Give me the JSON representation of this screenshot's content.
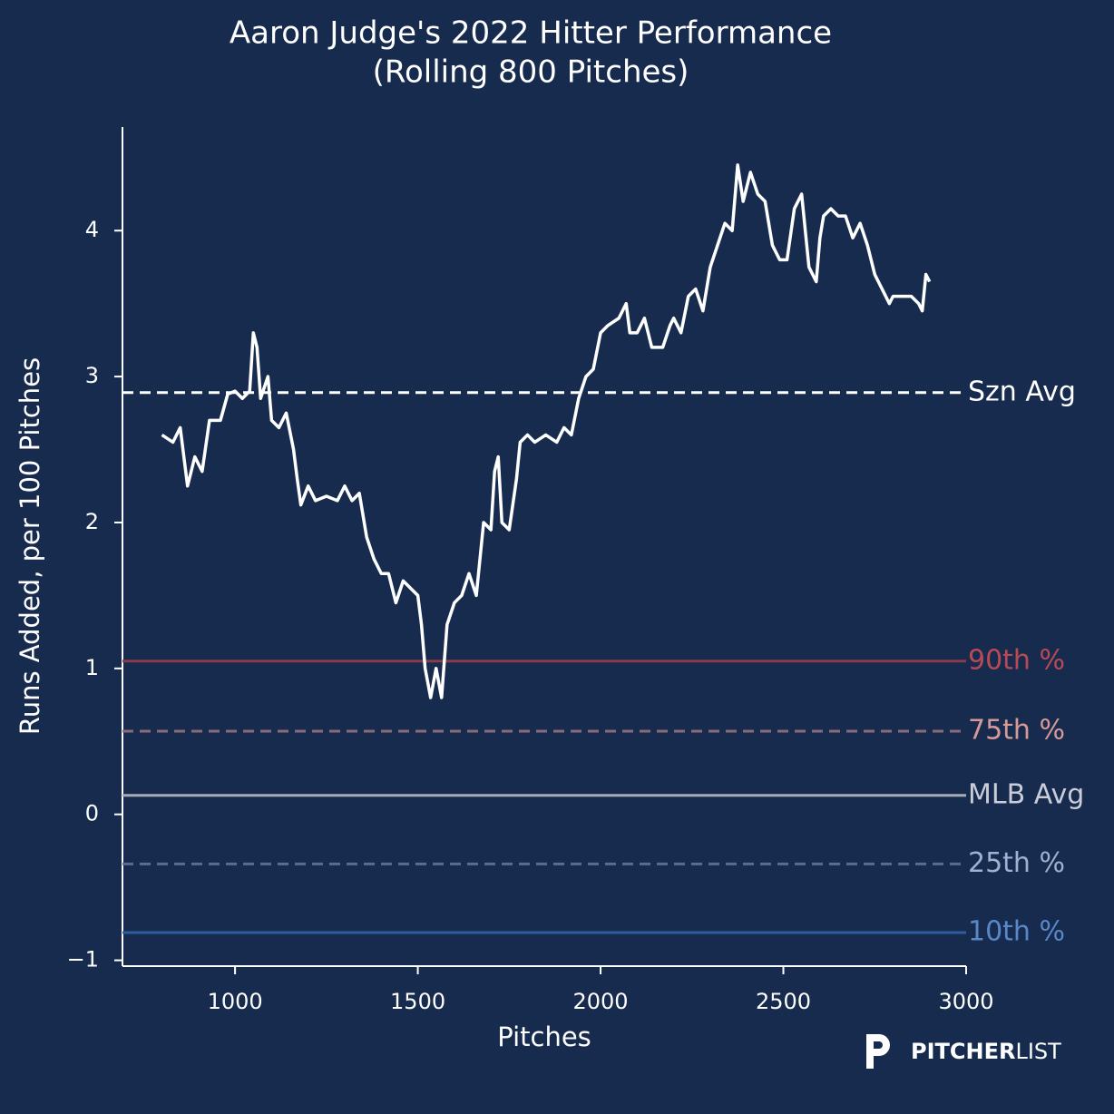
{
  "chart_data": {
    "type": "line",
    "title": "Aaron Judge's 2022 Hitter Performance",
    "subtitle": "(Rolling 800 Pitches)",
    "xlabel": "Pitches",
    "ylabel": "Runs Added, per 100 Pitches",
    "color": "#ffffff",
    "x": [
      800,
      830,
      850,
      870,
      890,
      910,
      930,
      960,
      980,
      1000,
      1020,
      1040,
      1050,
      1060,
      1070,
      1090,
      1100,
      1120,
      1140,
      1160,
      1170,
      1180,
      1200,
      1220,
      1250,
      1280,
      1300,
      1320,
      1340,
      1360,
      1380,
      1400,
      1420,
      1440,
      1460,
      1480,
      1500,
      1510,
      1520,
      1535,
      1550,
      1565,
      1580,
      1600,
      1620,
      1640,
      1660,
      1680,
      1700,
      1710,
      1720,
      1730,
      1750,
      1770,
      1780,
      1800,
      1820,
      1850,
      1880,
      1900,
      1920,
      1940,
      1960,
      1980,
      2000,
      2020,
      2050,
      2070,
      2080,
      2100,
      2120,
      2140,
      2170,
      2190,
      2200,
      2220,
      2240,
      2260,
      2280,
      2300,
      2320,
      2340,
      2360,
      2375,
      2390,
      2410,
      2430,
      2450,
      2470,
      2490,
      2510,
      2530,
      2550,
      2570,
      2590,
      2600,
      2610,
      2630,
      2650,
      2670,
      2690,
      2710,
      2730,
      2750,
      2770,
      2790,
      2800,
      2820,
      2850,
      2870,
      2880,
      2890,
      2900
    ],
    "values": [
      2.6,
      2.55,
      2.65,
      2.25,
      2.45,
      2.35,
      2.7,
      2.7,
      2.88,
      2.9,
      2.85,
      2.9,
      3.3,
      3.2,
      2.85,
      3.0,
      2.7,
      2.65,
      2.75,
      2.5,
      2.3,
      2.12,
      2.25,
      2.15,
      2.18,
      2.15,
      2.25,
      2.15,
      2.2,
      1.9,
      1.75,
      1.65,
      1.65,
      1.45,
      1.6,
      1.55,
      1.5,
      1.3,
      1.0,
      0.8,
      1.0,
      0.8,
      1.3,
      1.45,
      1.5,
      1.65,
      1.5,
      2.0,
      1.95,
      2.35,
      2.45,
      2.0,
      1.95,
      2.3,
      2.55,
      2.6,
      2.55,
      2.6,
      2.55,
      2.65,
      2.6,
      2.85,
      3.0,
      3.05,
      3.3,
      3.35,
      3.4,
      3.5,
      3.3,
      3.3,
      3.4,
      3.2,
      3.2,
      3.35,
      3.4,
      3.3,
      3.55,
      3.6,
      3.45,
      3.75,
      3.9,
      4.05,
      4.0,
      4.45,
      4.2,
      4.4,
      4.25,
      4.2,
      3.9,
      3.8,
      3.8,
      4.15,
      4.25,
      3.75,
      3.65,
      3.95,
      4.1,
      4.15,
      4.1,
      4.1,
      3.95,
      4.05,
      3.9,
      3.7,
      3.6,
      3.5,
      3.55,
      3.55,
      3.55,
      3.5,
      3.45,
      3.7,
      3.65
    ],
    "reference_lines": [
      {
        "label": "Szn Avg",
        "value": 2.89,
        "color": "#ffffff",
        "label_color": "#ffffff",
        "style": "dashed"
      },
      {
        "label": "90th %",
        "value": 1.05,
        "color": "#8b3a4a",
        "label_color": "#b84a55",
        "style": "solid"
      },
      {
        "label": "75th %",
        "value": 0.57,
        "color": "#8a6b7a",
        "label_color": "#d59a98",
        "style": "dashed"
      },
      {
        "label": "MLB Avg",
        "value": 0.13,
        "color": "#a8abb6",
        "label_color": "#c9cdd8",
        "style": "solid"
      },
      {
        "label": "25th %",
        "value": -0.34,
        "color": "#5a6d90",
        "label_color": "#9fb0d0",
        "style": "dashed"
      },
      {
        "label": "10th %",
        "value": -0.81,
        "color": "#2e5ca0",
        "label_color": "#5a87c6",
        "style": "solid"
      }
    ],
    "xlim": [
      692,
      3000
    ],
    "ylim": [
      -1.04,
      4.71
    ],
    "xticks": [
      1000,
      1500,
      2000,
      2500,
      3000
    ],
    "yticks": [
      {
        "value": -1,
        "label": "−1"
      },
      0,
      1,
      2,
      3,
      4
    ],
    "logo": {
      "bold": "PITCHER",
      "light": "LIST"
    }
  }
}
